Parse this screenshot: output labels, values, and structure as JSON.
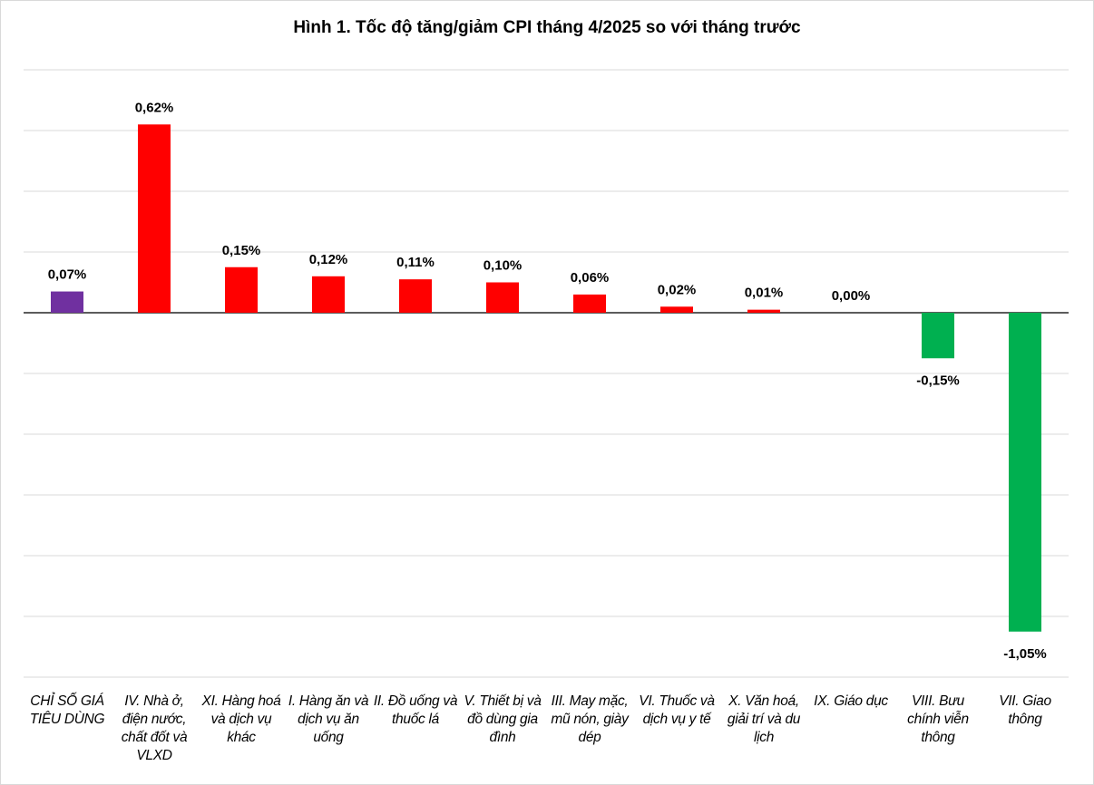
{
  "chart_data": {
    "type": "bar",
    "title": "Hình 1. Tốc độ tăng/giảm CPI tháng 4/2025 so với tháng trước",
    "categories": [
      "CHỈ SỐ GIÁ TIÊU DÙNG",
      "IV. Nhà ở, điện nước, chất đốt và VLXD",
      "XI. Hàng hoá và dịch vụ khác",
      "I. Hàng ăn và dịch vụ ăn uống",
      "II. Đồ uống và thuốc lá",
      "V. Thiết bị và đồ dùng gia đình",
      "III. May mặc, mũ nón, giày dép",
      "VI. Thuốc và dịch vụ y tế",
      "X. Văn hoá, giải trí và du lịch",
      "IX. Giáo dục",
      "VIII. Bưu chính viễn thông",
      "VII. Giao thông"
    ],
    "values": [
      0.07,
      0.62,
      0.15,
      0.12,
      0.11,
      0.1,
      0.06,
      0.02,
      0.01,
      0.0,
      -0.15,
      -1.05
    ],
    "data_labels": [
      "0,07%",
      "0,62%",
      "0,15%",
      "0,12%",
      "0,11%",
      "0,10%",
      "0,06%",
      "0,02%",
      "0,01%",
      "0,00%",
      "-0,15%",
      "-1,05%"
    ],
    "colors": {
      "total": "#7030a0",
      "increase": "#ff0000",
      "decrease": "#00b050"
    },
    "ylim": [
      -1.2,
      0.8
    ],
    "grid_step": 0.2,
    "grid": true,
    "y_tick_labels_shown": false,
    "legend": "none",
    "xlabel": "",
    "ylabel": ""
  }
}
